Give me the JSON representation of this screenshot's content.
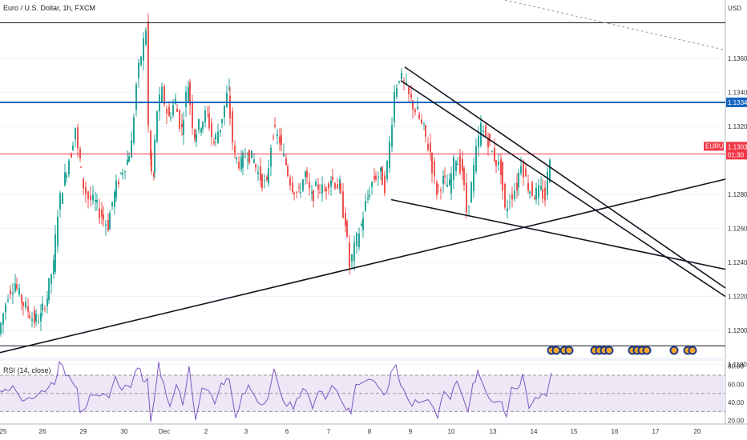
{
  "header": {
    "symbol_title": "Euro / U.S. Dollar, 1h, FXCM",
    "currency": "USD",
    "rsi_label": "RSI (14, close)"
  },
  "price_axis": {
    "labels": [
      "1.11800",
      "1.13600",
      "1.13400",
      "1.13200",
      "1.12800",
      "1.12600",
      "1.12400",
      "1.12200",
      "1.12000"
    ],
    "values": [
      1.118,
      1.136,
      1.134,
      1.132,
      1.128,
      1.126,
      1.124,
      1.122,
      1.12
    ]
  },
  "badges": {
    "level_price": "1.13342",
    "symbol": "EURUSD",
    "last_price": "1.13039",
    "countdown": "01:30"
  },
  "rsi_axis": {
    "labels": [
      "80.00",
      "60.00",
      "40.00",
      "20.00"
    ],
    "values": [
      80,
      60,
      40,
      20
    ]
  },
  "time_axis": {
    "labels": [
      "25",
      "26",
      "29",
      "30",
      "Dec",
      "2",
      "3",
      "6",
      "7",
      "8",
      "9",
      "10",
      "13",
      "14",
      "15",
      "16",
      "17",
      "20"
    ]
  },
  "colors": {
    "up": "#26a69a",
    "down": "#ef5350",
    "blue_line": "#1565c0",
    "red_line": "#f23645",
    "rsi_line": "#7e57c2",
    "rsi_band": "#ede7f6"
  },
  "chart_data": {
    "type": "candlestick",
    "instrument": "EURUSD",
    "timeframe": "1h",
    "price_range": [
      1.1185,
      1.1385
    ],
    "rsi_range": [
      18,
      85
    ],
    "rsi_levels": [
      70,
      50,
      30
    ],
    "horizontal_levels": [
      1.1381,
      1.13342,
      1.13039,
      1.1191
    ],
    "price_path": [
      [
        0,
        1.1198
      ],
      [
        6,
        1.121
      ],
      [
        12,
        1.1222
      ],
      [
        20,
        1.1228
      ],
      [
        28,
        1.1218
      ],
      [
        36,
        1.1212
      ],
      [
        44,
        1.1206
      ],
      [
        52,
        1.1208
      ],
      [
        60,
        1.122
      ],
      [
        68,
        1.1238
      ],
      [
        74,
        1.127
      ],
      [
        82,
        1.129
      ],
      [
        90,
        1.1305
      ],
      [
        96,
        1.132
      ],
      [
        100,
        1.13
      ],
      [
        106,
        1.1285
      ],
      [
        112,
        1.1278
      ],
      [
        120,
        1.1275
      ],
      [
        128,
        1.1268
      ],
      [
        136,
        1.1262
      ],
      [
        144,
        1.128
      ],
      [
        152,
        1.1292
      ],
      [
        160,
        1.13
      ],
      [
        166,
        1.131
      ],
      [
        172,
        1.1345
      ],
      [
        178,
        1.1362
      ],
      [
        184,
        1.1378
      ],
      [
        188,
        1.13
      ],
      [
        192,
        1.129
      ],
      [
        198,
        1.133
      ],
      [
        204,
        1.134
      ],
      [
        212,
        1.1325
      ],
      [
        220,
        1.1335
      ],
      [
        228,
        1.1318
      ],
      [
        236,
        1.1345
      ],
      [
        244,
        1.1315
      ],
      [
        252,
        1.1322
      ],
      [
        260,
        1.1328
      ],
      [
        268,
        1.131
      ],
      [
        276,
        1.132
      ],
      [
        286,
        1.134
      ],
      [
        294,
        1.1302
      ],
      [
        302,
        1.1298
      ],
      [
        310,
        1.1305
      ],
      [
        318,
        1.13
      ],
      [
        326,
        1.129
      ],
      [
        334,
        1.1285
      ],
      [
        342,
        1.1318
      ],
      [
        350,
        1.1312
      ],
      [
        358,
        1.1298
      ],
      [
        366,
        1.1285
      ],
      [
        374,
        1.128
      ],
      [
        382,
        1.1292
      ],
      [
        390,
        1.1278
      ],
      [
        398,
        1.1285
      ],
      [
        406,
        1.1282
      ],
      [
        414,
        1.129
      ],
      [
        424,
        1.1285
      ],
      [
        432,
        1.1265
      ],
      [
        438,
        1.1238
      ],
      [
        444,
        1.1248
      ],
      [
        452,
        1.1262
      ],
      [
        460,
        1.1278
      ],
      [
        468,
        1.129
      ],
      [
        476,
        1.1292
      ],
      [
        482,
        1.1285
      ],
      [
        488,
        1.131
      ],
      [
        494,
        1.134
      ],
      [
        500,
        1.135
      ],
      [
        506,
        1.1345
      ],
      [
        514,
        1.1335
      ],
      [
        522,
        1.1328
      ],
      [
        530,
        1.1318
      ],
      [
        538,
        1.1305
      ],
      [
        546,
        1.1282
      ],
      [
        554,
        1.1288
      ],
      [
        562,
        1.1285
      ],
      [
        570,
        1.1302
      ],
      [
        578,
        1.1295
      ],
      [
        584,
        1.127
      ],
      [
        590,
        1.1285
      ],
      [
        596,
        1.1305
      ],
      [
        602,
        1.132
      ],
      [
        610,
        1.1312
      ],
      [
        618,
        1.1302
      ],
      [
        626,
        1.1295
      ],
      [
        632,
        1.127
      ],
      [
        638,
        1.1278
      ],
      [
        646,
        1.1285
      ],
      [
        652,
        1.13
      ],
      [
        660,
        1.1285
      ],
      [
        668,
        1.128
      ],
      [
        676,
        1.1282
      ],
      [
        682,
        1.1278
      ],
      [
        688,
        1.1304
      ]
    ]
  }
}
